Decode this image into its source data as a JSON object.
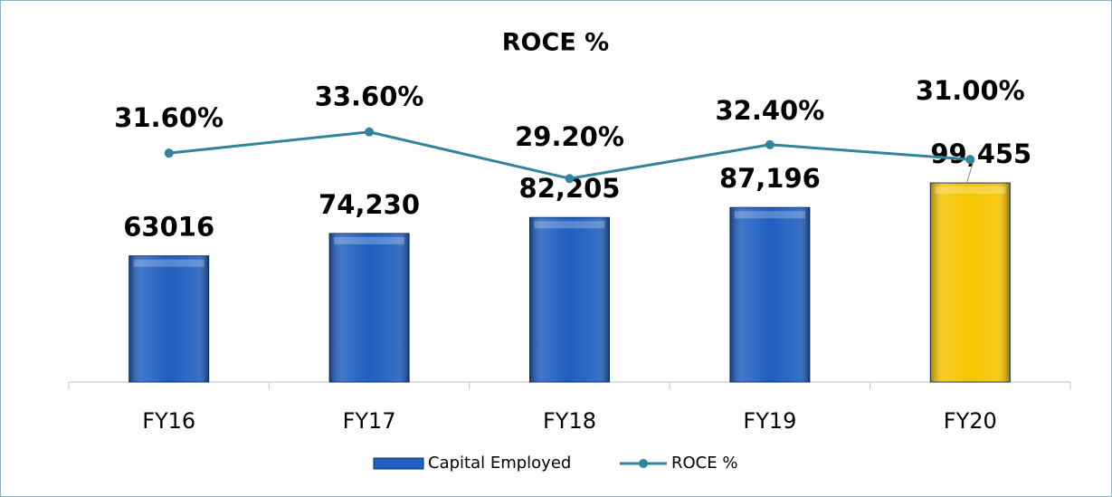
{
  "chart_data": {
    "type": "bar",
    "title": "ROCE %",
    "categories": [
      "FY16",
      "FY17",
      "FY18",
      "FY19",
      "FY20"
    ],
    "series": [
      {
        "name": "Capital Employed",
        "type": "bar",
        "color": "#1f5fbf",
        "colors": [
          "#1f5fbf",
          "#1f5fbf",
          "#1f5fbf",
          "#1f5fbf",
          "#f5c400"
        ],
        "values": [
          63016,
          74230,
          82205,
          87196,
          99455
        ],
        "value_labels": [
          "63016",
          "74,230",
          "82,205",
          "87,196",
          "99,455"
        ]
      },
      {
        "name": "ROCE %",
        "type": "line",
        "axis": "y2",
        "color": "#31849b",
        "values": [
          31.6,
          33.6,
          29.2,
          32.4,
          31.0
        ],
        "value_labels": [
          "31.60%",
          "33.60%",
          "29.20%",
          "32.40%",
          "31.00%"
        ]
      }
    ],
    "ylim": [
      0,
      180000
    ],
    "y2lim": [
      10,
      44
    ],
    "legend": "bottom"
  }
}
